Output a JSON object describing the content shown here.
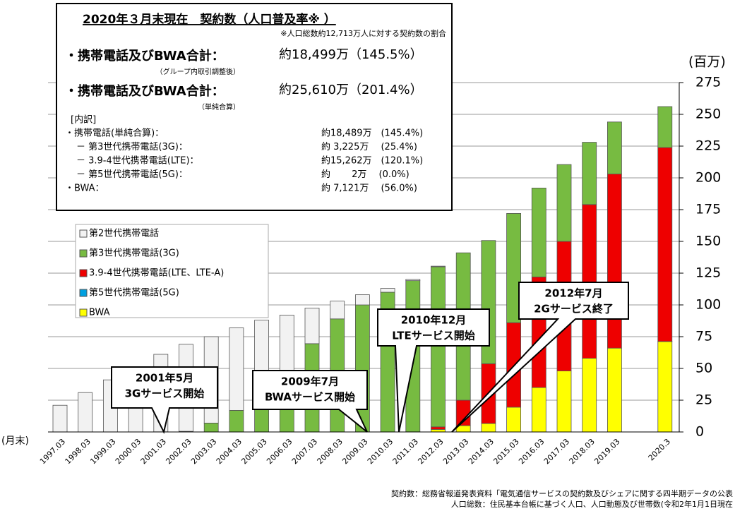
{
  "chart_data": {
    "type": "bar",
    "stacked": true,
    "unit_label": "(百万)",
    "x_label": "(月末)",
    "categories": [
      "1997.03",
      "1998.03",
      "1999.03",
      "2000.03",
      "2001.03",
      "2002.03",
      "2003.03",
      "2004.03",
      "2005.03",
      "2006.03",
      "2007.03",
      "2008.03",
      "2009.03",
      "2010.03",
      "2011.03",
      "2012.03",
      "2013.03",
      "2014.03",
      "2015.03",
      "2016.03",
      "2017.03",
      "2018.03",
      "2019.03",
      null,
      "2020.3"
    ],
    "series": [
      {
        "name": "BWA",
        "color": "#ffff00",
        "values": [
          0,
          0,
          0,
          0,
          0,
          0,
          0,
          0,
          0,
          0,
          0,
          0,
          0,
          0,
          0,
          2,
          5,
          6.7,
          19.5,
          35,
          48,
          58,
          66,
          null,
          71.21
        ]
      },
      {
        "name": "第5世代携帯電話(5G)",
        "color": "#00a0e0",
        "values": [
          0,
          0,
          0,
          0,
          0,
          0,
          0,
          0,
          0,
          0,
          0,
          0,
          0,
          0,
          0,
          0,
          0,
          0,
          0,
          0,
          0,
          0,
          0,
          null,
          0.02
        ]
      },
      {
        "name": "3.9-4世代携帯電話(LTE、LTE-A)",
        "color": "#ee0000",
        "values": [
          0,
          0,
          0,
          0,
          0,
          0,
          0,
          0,
          0,
          0,
          0,
          0,
          0,
          0,
          0.1,
          2,
          20,
          47,
          66.5,
          87,
          102,
          121,
          137,
          null,
          152.62
        ]
      },
      {
        "name": "第3世代携帯電話(3G)",
        "color": "#77bb41",
        "values": [
          0,
          0,
          0,
          0,
          0.1,
          0.5,
          7,
          17,
          27,
          41,
          69.5,
          89,
          100,
          110,
          119,
          126,
          116,
          97,
          86,
          70,
          60.5,
          49,
          41,
          null,
          32.25
        ]
      },
      {
        "name": "第2世代携帯電話",
        "color": "#f2f2f2",
        "values": [
          21,
          31,
          41,
          51,
          61,
          68.5,
          68,
          65,
          61,
          51,
          28,
          14,
          8,
          3,
          1,
          0.5,
          0,
          0,
          0,
          0,
          0,
          0,
          0,
          null,
          0
        ]
      }
    ],
    "legend_order": [
      4,
      3,
      2,
      1,
      0
    ],
    "ylim": [
      0,
      275
    ],
    "yticks": [
      0,
      25,
      50,
      75,
      100,
      125,
      150,
      175,
      200,
      225,
      250,
      275
    ],
    "grid": true,
    "annotations": [
      {
        "lines": [
          "2001年5月",
          "3Gサービス開始"
        ]
      },
      {
        "lines": [
          "2009年7月",
          "BWAサービス開始"
        ]
      },
      {
        "lines": [
          "2010年12月",
          "LTEサービス開始"
        ]
      },
      {
        "lines": [
          "2012年7月",
          "2Gサービス終了"
        ]
      }
    ],
    "info_box": {
      "title": "2020年３月末現在　契約数（人口普及率※ ）",
      "note": "※人口総数約12,713万人に対する契約数の割合",
      "totals": [
        {
          "label": "・携帯電話及びBWA合計：",
          "value": "約18,499万（145.5%）",
          "sub": "（グループ内取引調整後）"
        },
        {
          "label": "・携帯電話及びBWA合計：",
          "value": "約25,610万（201.4%）",
          "sub": "（単純合算）"
        }
      ],
      "breakdown_title": "[内訳]",
      "breakdown": [
        {
          "label": "・携帯電話(単純合算)：",
          "value": "約18,489万　(145.4%)"
        },
        {
          "label": "－ 第3世代携帯電話(3G)：",
          "value": "約 3,225万　 (25.4%)"
        },
        {
          "label": "－ 3.9-4世代携帯電話(LTE)：",
          "value": "約15,262万　(120.1%)"
        },
        {
          "label": "－ 第5世代携帯電話(5G)：",
          "value": "約　　 2万　 (0.0%)"
        },
        {
          "label": "・BWA：",
          "value": "約 7,121万　 (56.0%)"
        }
      ]
    },
    "sources": [
      "契約数：総務省報道発表資料「電気通信サービスの契約数及びシェアに関する四半期データの公表",
      "人口総数：住民基本台帳に基づく人口、人口動態及び世帯数(令和2年1月1日現在"
    ]
  }
}
